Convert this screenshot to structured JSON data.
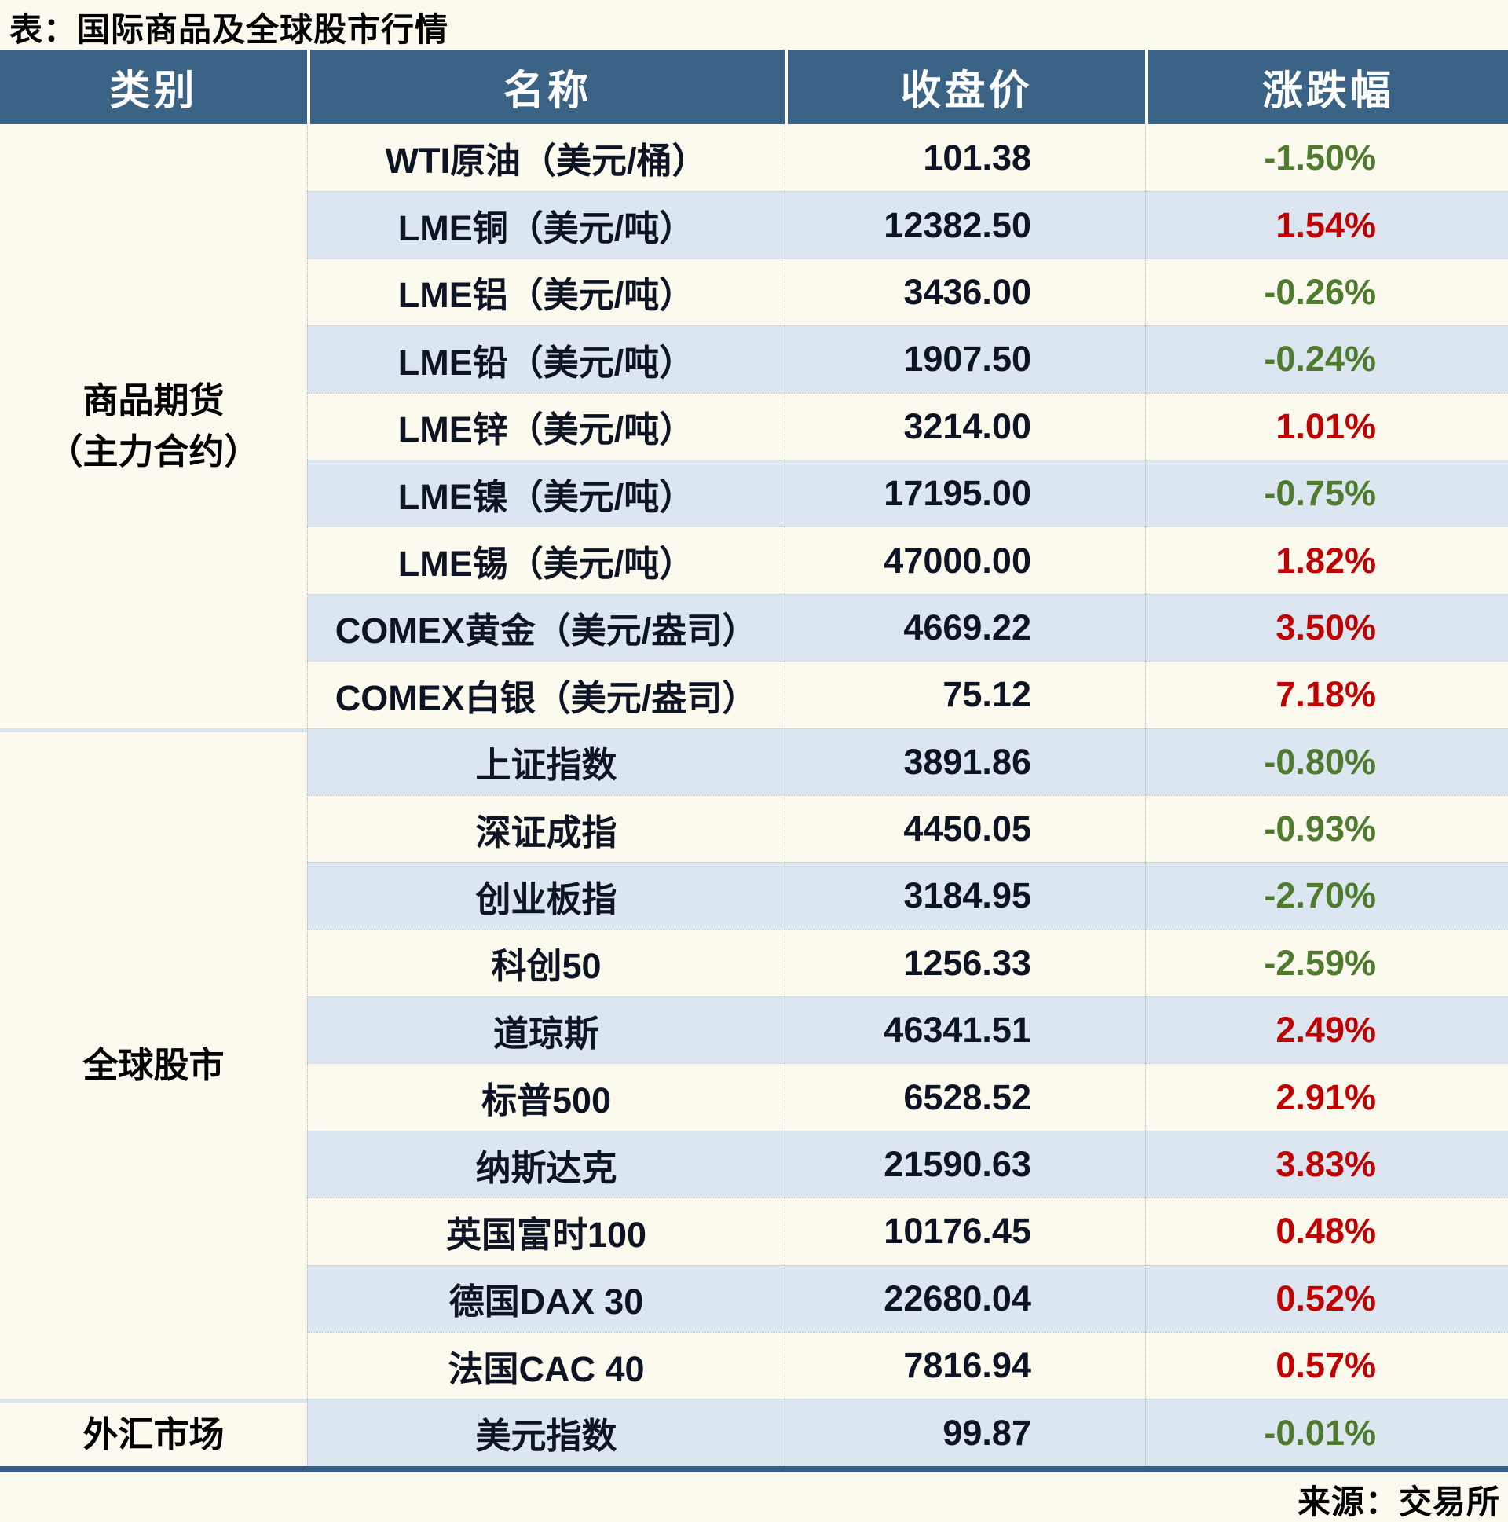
{
  "title": "表：国际商品及全球股市行情",
  "source_note": "来源：交易所",
  "columns": [
    "类别",
    "名称",
    "收盘价",
    "涨跌幅"
  ],
  "colors": {
    "header_bg": "#3a6386",
    "band_row_bg": "#dce6f1",
    "white_row_bg": "#fcfaee",
    "positive_red": "#c00000",
    "negative_green": "#4e7b2e",
    "bottom_rule": "#36608c",
    "section_separator": "#d9e4f0"
  },
  "sections": [
    {
      "label": "商品期货\n（主力合约）",
      "rows": [
        {
          "name": "WTI原油（美元/桶）",
          "close": "101.38",
          "change": "-1.50%"
        },
        {
          "name": "LME铜（美元/吨）",
          "close": "12382.50",
          "change": "1.54%"
        },
        {
          "name": "LME铝（美元/吨）",
          "close": "3436.00",
          "change": "-0.26%"
        },
        {
          "name": "LME铅（美元/吨）",
          "close": "1907.50",
          "change": "-0.24%"
        },
        {
          "name": "LME锌（美元/吨）",
          "close": "3214.00",
          "change": "1.01%"
        },
        {
          "name": "LME镍（美元/吨）",
          "close": "17195.00",
          "change": "-0.75%"
        },
        {
          "name": "LME锡（美元/吨）",
          "close": "47000.00",
          "change": "1.82%"
        },
        {
          "name": "COMEX黄金（美元/盎司）",
          "close": "4669.22",
          "change": "3.50%"
        },
        {
          "name": "COMEX白银（美元/盎司）",
          "close": "75.12",
          "change": "7.18%"
        }
      ]
    },
    {
      "label": "全球股市",
      "rows": [
        {
          "name": "上证指数",
          "close": "3891.86",
          "change": "-0.80%"
        },
        {
          "name": "深证成指",
          "close": "4450.05",
          "change": "-0.93%"
        },
        {
          "name": "创业板指",
          "close": "3184.95",
          "change": "-2.70%"
        },
        {
          "name": "科创50",
          "close": "1256.33",
          "change": "-2.59%"
        },
        {
          "name": "道琼斯",
          "close": "46341.51",
          "change": "2.49%"
        },
        {
          "name": "标普500",
          "close": "6528.52",
          "change": "2.91%"
        },
        {
          "name": "纳斯达克",
          "close": "21590.63",
          "change": "3.83%"
        },
        {
          "name": "英国富时100",
          "close": "10176.45",
          "change": "0.48%"
        },
        {
          "name": "德国DAX 30",
          "close": "22680.04",
          "change": "0.52%"
        },
        {
          "name": "法国CAC 40",
          "close": "7816.94",
          "change": "0.57%"
        }
      ]
    },
    {
      "label": "外汇市场",
      "rows": [
        {
          "name": "美元指数",
          "close": "99.87",
          "change": "-0.01%"
        }
      ]
    }
  ],
  "chart_data": {
    "type": "table",
    "title": "表：国际商品及全球股市行情",
    "columns": [
      "类别",
      "名称",
      "收盘价",
      "涨跌幅"
    ],
    "rows": [
      [
        "商品期货（主力合约）",
        "WTI原油（美元/桶）",
        101.38,
        "-1.50%"
      ],
      [
        "商品期货（主力合约）",
        "LME铜（美元/吨）",
        12382.5,
        "1.54%"
      ],
      [
        "商品期货（主力合约）",
        "LME铝（美元/吨）",
        3436.0,
        "-0.26%"
      ],
      [
        "商品期货（主力合约）",
        "LME铅（美元/吨）",
        1907.5,
        "-0.24%"
      ],
      [
        "商品期货（主力合约）",
        "LME锌（美元/吨）",
        3214.0,
        "1.01%"
      ],
      [
        "商品期货（主力合约）",
        "LME镍（美元/吨）",
        17195.0,
        "-0.75%"
      ],
      [
        "商品期货（主力合约）",
        "LME锡（美元/吨）",
        47000.0,
        "1.82%"
      ],
      [
        "商品期货（主力合约）",
        "COMEX黄金（美元/盎司）",
        4669.22,
        "3.50%"
      ],
      [
        "商品期货（主力合约）",
        "COMEX白银（美元/盎司）",
        75.12,
        "7.18%"
      ],
      [
        "全球股市",
        "上证指数",
        3891.86,
        "-0.80%"
      ],
      [
        "全球股市",
        "深证成指",
        4450.05,
        "-0.93%"
      ],
      [
        "全球股市",
        "创业板指",
        3184.95,
        "-2.70%"
      ],
      [
        "全球股市",
        "科创50",
        1256.33,
        "-2.59%"
      ],
      [
        "全球股市",
        "道琼斯",
        46341.51,
        "2.49%"
      ],
      [
        "全球股市",
        "标普500",
        6528.52,
        "2.91%"
      ],
      [
        "全球股市",
        "纳斯达克",
        21590.63,
        "3.83%"
      ],
      [
        "全球股市",
        "英国富时100",
        10176.45,
        "0.48%"
      ],
      [
        "全球股市",
        "德国DAX 30",
        22680.04,
        "0.52%"
      ],
      [
        "全球股市",
        "法国CAC 40",
        7816.94,
        "0.57%"
      ],
      [
        "外汇市场",
        "美元指数",
        99.87,
        "-0.01%"
      ]
    ],
    "notes": {
      "source": "来源：交易所",
      "color_convention": "positive change = red (#c00000), negative change = green (#4e7b2e)",
      "legend_position": "none",
      "grid": "dotted hairlines between body cells, banded rows #dce6f1"
    }
  }
}
